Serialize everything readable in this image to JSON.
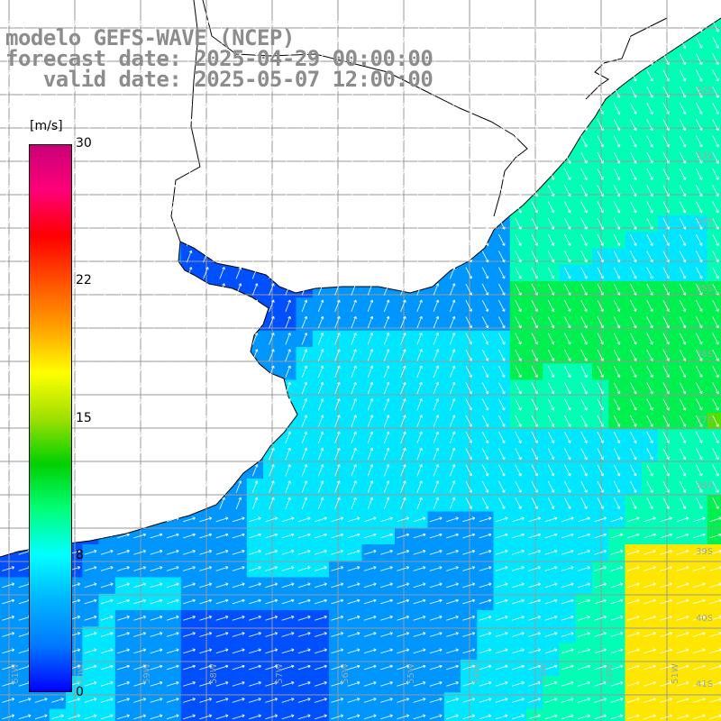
{
  "header": {
    "line1": "modelo GEFS-WAVE (NCEP)",
    "line2": "forecast date: 2025-04-29 00:00:00",
    "line3": "   valid date: 2025-05-07 12:00:00"
  },
  "colorbar": {
    "unit": "[m/s]",
    "ticks": [
      "30",
      "22",
      "15",
      "8",
      "0"
    ],
    "tick_values": [
      30,
      22,
      15,
      8,
      0
    ],
    "min": 0,
    "max": 30,
    "colors": [
      "#0000ff",
      "#0078ff",
      "#00b4ff",
      "#00ffff",
      "#00ff78",
      "#00d000",
      "#a0e000",
      "#ffff00",
      "#ffa000",
      "#ff5000",
      "#ff0000",
      "#ff0078",
      "#c80078"
    ]
  },
  "map": {
    "lat_labels": [
      "32S",
      "33S",
      "34S",
      "35S",
      "36S",
      "37S",
      "38S",
      "39S",
      "40S",
      "41S"
    ],
    "lon_labels": [
      "61W",
      "60W",
      "59W",
      "58W",
      "57W",
      "56W",
      "55W",
      "54W",
      "53W",
      "52W",
      "51W"
    ],
    "wind_field_note_colors": {
      "land": "#ffffff",
      "grid": "#999999",
      "coast": "#000000",
      "arrow": "#ffffff"
    }
  }
}
